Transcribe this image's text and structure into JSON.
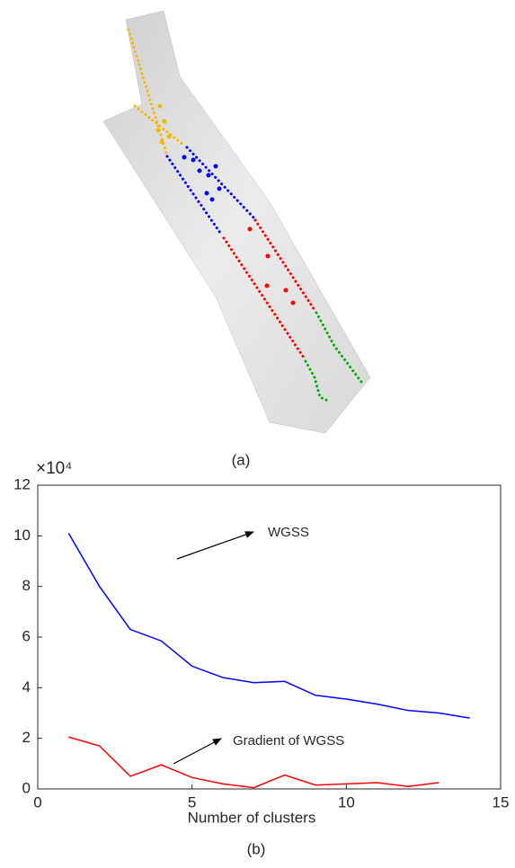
{
  "chart_data": {
    "type": "line",
    "caption_a": "(a)",
    "caption_b": "(b)",
    "y_multiplier": "×10⁴",
    "xlabel": "Number of clusters",
    "xlim": [
      0,
      15
    ],
    "xticks": [
      0,
      5,
      10,
      15
    ],
    "ylim": [
      0,
      12
    ],
    "yticks": [
      0,
      2,
      4,
      6,
      8,
      10,
      12
    ],
    "grid": false,
    "annotations": [
      "WGSS",
      "Gradient of WGSS"
    ],
    "series": [
      {
        "name": "WGSS",
        "color": "#0000ff",
        "x": [
          1,
          2,
          3,
          4,
          5,
          6,
          7,
          8,
          9,
          10,
          11,
          12,
          13,
          14
        ],
        "values": [
          10.1,
          8.0,
          6.3,
          5.85,
          4.85,
          4.4,
          4.2,
          4.25,
          3.7,
          3.55,
          3.35,
          3.1,
          3.0,
          2.8
        ]
      },
      {
        "name": "Gradient of WGSS",
        "color": "#ff0000",
        "x": [
          1,
          2,
          3,
          4,
          5,
          6,
          7,
          8,
          9,
          10,
          11,
          12,
          13
        ],
        "values": [
          2.05,
          1.7,
          0.5,
          0.95,
          0.45,
          0.2,
          0.05,
          0.55,
          0.15,
          0.2,
          0.25,
          0.1,
          0.25
        ]
      }
    ]
  }
}
